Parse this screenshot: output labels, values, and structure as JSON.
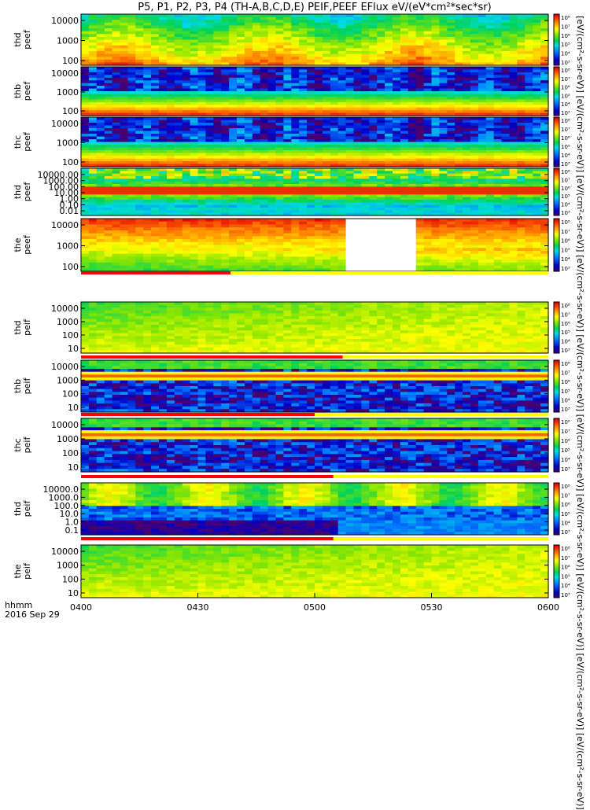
{
  "title": "P5, P1, P2, P3, P4 (TH-A,B,C,D,E) PEIF,PEEF EFlux eV/(eV*cm²*sec*sr)",
  "time_axis": {
    "label": "hhmm",
    "date": "2016 Sep 29",
    "ticks": [
      "0400",
      "0430",
      "0500",
      "0530",
      "0600"
    ]
  },
  "colorbar_units": "[eV/(cm²-s-sr-eV)] [eV/(cm²-s-sr-eV)] [eV/(cm²-s-sr-eV)] [eV/(cm²-s-sr-eV)] [eV/(cm²-s-sr-eV)] [eV/(cm²-s-sr-eV)] [eV/(cm²-s-sr-eV)] [eV/(cm²-s-sr-eV)] [eV/(cm²-s-sr-eV)] [eV/(cm²-s-sr-eV)]",
  "colorbar_ticks": [
    "10³",
    "10⁴",
    "10⁵",
    "10⁶",
    "10⁷",
    "10⁸"
  ],
  "chart_data": {
    "type": "heatmap",
    "x": {
      "start": "0400",
      "end": "0600",
      "unit": "hhmm"
    },
    "panels": [
      {
        "label": [
          "thd",
          "peef"
        ],
        "yticks": [
          "10000",
          "1000",
          "100"
        ],
        "pattern": "green-top-yellow-bottom",
        "gap": null
      },
      {
        "label": [
          "thb",
          "peef"
        ],
        "yticks": [
          "10000",
          "1000",
          "100"
        ],
        "pattern": "blue-top-red-bottom",
        "gap": null
      },
      {
        "label": [
          "thc",
          "peef"
        ],
        "yticks": [
          "10000",
          "1000",
          "100"
        ],
        "pattern": "blue-top-red-bottom",
        "gap": null
      },
      {
        "label": [
          "thd",
          "peef"
        ],
        "yticks": [
          "10000.00",
          "1000.00",
          "100.00",
          "10.00",
          "1.00",
          "0.10",
          "0.01"
        ],
        "pattern": "banded-red",
        "gap": null
      },
      {
        "label": [
          "the",
          "peef"
        ],
        "yticks": [
          "10000",
          "1000",
          "100"
        ],
        "pattern": "red-top-green-bottom",
        "gap": [
          "0508",
          "0526"
        ]
      },
      {
        "label": [
          "thd",
          "peif"
        ],
        "yticks": [
          "10000",
          "1000",
          "100",
          "10"
        ],
        "pattern": "yellow-green",
        "gap": null
      },
      {
        "label": [
          "thb",
          "peif"
        ],
        "yticks": [
          "10000",
          "1000",
          "100",
          "10"
        ],
        "pattern": "red-band-blue",
        "gap": null
      },
      {
        "label": [
          "thc",
          "peif"
        ],
        "yticks": [
          "10000",
          "1000",
          "100",
          "10"
        ],
        "pattern": "red-band-blue",
        "gap": null
      },
      {
        "label": [
          "thd",
          "peif"
        ],
        "yticks": [
          "10000.0",
          "1000.0",
          "100.0",
          "10.0",
          "1.0",
          "0.1"
        ],
        "pattern": "yellow-blue-dark",
        "gap": null
      },
      {
        "label": [
          "the",
          "peif"
        ],
        "yticks": [
          "10000",
          "1000",
          "100",
          "10"
        ],
        "pattern": "yellow-green",
        "gap": null
      }
    ]
  },
  "colors": {
    "axis": "#000000",
    "flag_red": "#ff0000",
    "flag_yellow": "#ffff00"
  }
}
